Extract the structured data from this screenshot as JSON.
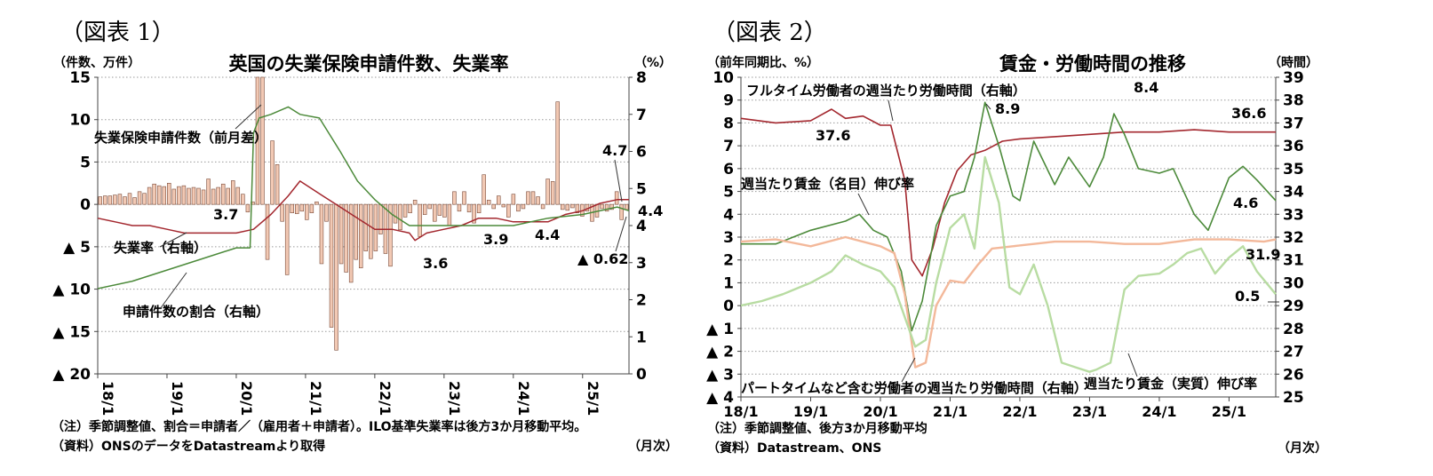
{
  "chart_data": [
    {
      "type": "bar",
      "figure_label": "（図表 1）",
      "title": "英国の失業保険申請件数、失業率",
      "left_unit": "（件数、万件）",
      "right_unit": "（%）",
      "x_ticks": [
        "18/1",
        "19/1",
        "20/1",
        "21/1",
        "22/1",
        "23/1",
        "24/1",
        "25/1"
      ],
      "x_range": [
        2018.0,
        2025.67
      ],
      "y_left": {
        "range": [
          -20,
          15
        ],
        "ticks": [
          15,
          10,
          5,
          0,
          -5,
          -10,
          -15,
          -20
        ],
        "tick_labels": [
          "15",
          "10",
          "5",
          "0",
          "▲ 5",
          "▲ 10",
          "▲ 15",
          "▲ 20"
        ]
      },
      "y_right": {
        "range": [
          0,
          8
        ],
        "ticks": [
          8,
          7,
          6,
          5,
          4,
          3,
          2,
          1,
          0
        ],
        "tick_labels": [
          "8",
          "7",
          "6",
          "5",
          "4",
          "3",
          "2",
          "1",
          "0"
        ]
      },
      "bars": {
        "name": "失業保険申請件数（前月差）",
        "color": "#f2c9b4",
        "values": [
          0.9,
          1.0,
          1.0,
          1.1,
          1.2,
          0.9,
          1.3,
          0.8,
          1.5,
          1.3,
          2.0,
          2.4,
          2.2,
          2.1,
          2.5,
          1.8,
          2.1,
          2.2,
          1.9,
          2.0,
          1.9,
          1.7,
          3.0,
          1.8,
          2.0,
          2.4,
          1.9,
          2.8,
          2.0,
          1.2,
          -0.9,
          0.3,
          15.0,
          15.0,
          -6.5,
          7.5,
          4.7,
          -2.0,
          -8.3,
          -1.0,
          -1.1,
          -0.8,
          -1.8,
          -1.0,
          0.3,
          -7.0,
          -2.0,
          -14.5,
          -17.2,
          -7.0,
          -8.0,
          -9.2,
          -6.5,
          -7.5,
          -5.5,
          -6.4,
          -5.5,
          -3.5,
          -5.8,
          -7.3,
          -2.2,
          -3.0,
          -1.5,
          -1.0,
          0.5,
          -3.8,
          -1.2,
          -0.5,
          -2.0,
          -1.3,
          -1.5,
          -2.5,
          1.5,
          -0.8,
          1.5,
          -0.9,
          -2.2,
          -1.0,
          3.5,
          0.5,
          -0.5,
          1.0,
          -0.3,
          -1.5,
          1.2,
          -0.8,
          -0.5,
          1.5,
          1.5,
          0.9,
          -0.5,
          3.0,
          2.7,
          12.1,
          -0.6,
          -0.7,
          -0.4,
          -1.0,
          -1.4,
          -0.8,
          -2.0,
          -1.5,
          -0.5,
          -0.8,
          -0.6,
          1.5,
          -1.8,
          -0.62
        ]
      },
      "series": [
        {
          "name": "失業率（右軸）",
          "color": "#a3272e",
          "x": [
            2018.0,
            2018.25,
            2018.5,
            2018.75,
            2019.0,
            2019.25,
            2019.5,
            2019.75,
            2020.0,
            2020.25,
            2020.5,
            2020.75,
            2020.92,
            2021.25,
            2021.5,
            2021.75,
            2022.0,
            2022.25,
            2022.5,
            2022.58,
            2022.75,
            2023.0,
            2023.25,
            2023.5,
            2023.75,
            2024.0,
            2024.25,
            2024.5,
            2024.75,
            2025.0,
            2025.25,
            2025.5,
            2025.67
          ],
          "values": [
            4.2,
            4.1,
            4.0,
            4.0,
            3.9,
            3.8,
            3.8,
            3.8,
            3.8,
            3.9,
            4.3,
            4.8,
            5.2,
            4.8,
            4.5,
            4.2,
            3.9,
            3.9,
            3.8,
            3.6,
            3.8,
            3.9,
            4.0,
            4.2,
            4.2,
            4.1,
            4.1,
            4.1,
            4.3,
            4.4,
            4.6,
            4.7,
            4.7
          ]
        },
        {
          "name": "申請件数の割合（右軸）",
          "color": "#4c8a3a",
          "x": [
            2018.0,
            2018.5,
            2019.0,
            2019.5,
            2020.0,
            2020.2,
            2020.25,
            2020.33,
            2020.5,
            2020.75,
            2020.92,
            2021.2,
            2021.5,
            2021.75,
            2022.0,
            2022.25,
            2022.5,
            2023.0,
            2023.5,
            2024.0,
            2024.5,
            2025.0,
            2025.5,
            2025.67
          ],
          "values": [
            2.3,
            2.5,
            2.8,
            3.1,
            3.4,
            3.4,
            6.5,
            6.9,
            7.0,
            7.2,
            7.0,
            6.9,
            6.0,
            5.2,
            4.7,
            4.3,
            4.0,
            4.0,
            4.0,
            4.0,
            4.2,
            4.3,
            4.5,
            4.4
          ]
        }
      ],
      "annotations": [
        {
          "text": "失業保険申請件数（前月差）"
        },
        {
          "text": "失業率（右軸）"
        },
        {
          "text": "申請件数の割合（右軸）"
        },
        {
          "text": "3.7"
        },
        {
          "text": "3.6"
        },
        {
          "text": "3.9"
        },
        {
          "text": "4.4"
        },
        {
          "text": "4.7"
        },
        {
          "text": "4.4"
        },
        {
          "text": "▲ 0.62"
        }
      ],
      "notes": [
        "（注）季節調整値、割合＝申請者／（雇用者＋申請者）。ILO基準失業率は後方3か月移動平均。",
        "（資料）ONSのデータをDatastreamより取得"
      ],
      "frequency_label": "（月次）"
    },
    {
      "type": "line",
      "figure_label": "（図表 2）",
      "title": "賃金・労働時間の推移",
      "left_unit": "（前年同期比、%）",
      "right_unit": "（時間）",
      "x_ticks": [
        "18/1",
        "19/1",
        "20/1",
        "21/1",
        "22/1",
        "23/1",
        "24/1",
        "25/1"
      ],
      "x_range": [
        2018.0,
        2025.67
      ],
      "y_left": {
        "range": [
          -4,
          10
        ],
        "ticks": [
          10,
          9,
          8,
          7,
          6,
          5,
          4,
          3,
          2,
          1,
          0,
          -1,
          -2,
          -3,
          -4
        ],
        "tick_labels": [
          "10",
          "9",
          "8",
          "7",
          "6",
          "5",
          "4",
          "3",
          "2",
          "1",
          "0",
          "▲ 1",
          "▲ 2",
          "▲ 3",
          "▲ 4"
        ]
      },
      "y_right": {
        "range": [
          25,
          39
        ],
        "ticks": [
          39,
          38,
          37,
          36,
          35,
          34,
          33,
          32,
          31,
          30,
          29,
          28,
          27,
          26,
          25
        ],
        "tick_labels": [
          "39",
          "38",
          "37",
          "36",
          "35",
          "34",
          "33",
          "32",
          "31",
          "30",
          "29",
          "28",
          "27",
          "26",
          "25"
        ]
      },
      "series": [
        {
          "name": "フルタイム労働者の週当たり労働時間（右軸）",
          "axis": "right",
          "color": "#a3272e",
          "x": [
            2018.0,
            2018.5,
            2019.0,
            2019.3,
            2019.5,
            2019.75,
            2020.0,
            2020.15,
            2020.35,
            2020.45,
            2020.6,
            2020.75,
            2020.92,
            2021.1,
            2021.3,
            2021.5,
            2021.75,
            2022.0,
            2022.5,
            2023.0,
            2023.5,
            2024.0,
            2024.5,
            2025.0,
            2025.5,
            2025.67
          ],
          "values": [
            37.2,
            37.0,
            37.1,
            37.6,
            37.2,
            37.3,
            36.9,
            36.9,
            34.5,
            31.0,
            30.3,
            31.5,
            33.5,
            34.9,
            35.6,
            35.8,
            36.2,
            36.3,
            36.4,
            36.5,
            36.6,
            36.6,
            36.7,
            36.6,
            36.6,
            36.6
          ]
        },
        {
          "name": "週当たり賃金（名目）伸び率",
          "axis": "left",
          "color": "#4c8a3a",
          "x": [
            2018.0,
            2018.5,
            2019.0,
            2019.5,
            2019.7,
            2019.9,
            2020.1,
            2020.3,
            2020.45,
            2020.6,
            2020.8,
            2021.0,
            2021.2,
            2021.35,
            2021.5,
            2021.7,
            2021.9,
            2022.0,
            2022.2,
            2022.5,
            2022.7,
            2023.0,
            2023.2,
            2023.35,
            2023.5,
            2023.7,
            2024.0,
            2024.2,
            2024.5,
            2024.7,
            2025.0,
            2025.2,
            2025.4,
            2025.67
          ],
          "values": [
            2.7,
            2.7,
            3.3,
            3.7,
            4.0,
            3.3,
            3.0,
            1.5,
            -1.1,
            0.2,
            3.5,
            4.8,
            5.0,
            6.5,
            8.9,
            7.0,
            4.8,
            4.6,
            7.2,
            5.3,
            6.5,
            5.2,
            6.5,
            8.4,
            7.5,
            6.0,
            5.8,
            6.0,
            4.0,
            3.3,
            5.6,
            6.1,
            5.5,
            4.6
          ]
        },
        {
          "name": "パートタイムなど含む労働者の週当たり労働時間（右軸）",
          "axis": "right",
          "color": "#f3b89a",
          "x": [
            2018.0,
            2018.5,
            2019.0,
            2019.5,
            2020.0,
            2020.2,
            2020.35,
            2020.5,
            2020.65,
            2020.8,
            2021.0,
            2021.2,
            2021.4,
            2021.6,
            2021.9,
            2022.2,
            2022.5,
            2023.0,
            2023.5,
            2024.0,
            2024.5,
            2025.0,
            2025.5,
            2025.67
          ],
          "values": [
            31.8,
            31.9,
            31.6,
            32.0,
            31.6,
            31.3,
            29.5,
            26.3,
            26.5,
            29.0,
            30.1,
            30.0,
            30.8,
            31.5,
            31.6,
            31.7,
            31.8,
            31.8,
            31.7,
            31.7,
            31.9,
            31.9,
            31.8,
            31.9
          ]
        },
        {
          "name": "週当たり賃金（実質）伸び率",
          "axis": "left",
          "color": "#b8dca2",
          "x": [
            2018.0,
            2018.3,
            2018.6,
            2019.0,
            2019.3,
            2019.5,
            2019.75,
            2020.0,
            2020.2,
            2020.35,
            2020.5,
            2020.65,
            2020.8,
            2021.0,
            2021.2,
            2021.35,
            2021.5,
            2021.7,
            2021.85,
            2022.0,
            2022.2,
            2022.4,
            2022.6,
            2022.8,
            2023.0,
            2023.1,
            2023.3,
            2023.5,
            2023.7,
            2024.0,
            2024.2,
            2024.4,
            2024.6,
            2024.8,
            2025.0,
            2025.2,
            2025.4,
            2025.67
          ],
          "values": [
            0.0,
            0.2,
            0.5,
            1.0,
            1.5,
            2.2,
            1.8,
            1.5,
            0.8,
            -0.5,
            -1.8,
            -1.5,
            1.0,
            3.4,
            4.0,
            2.5,
            6.5,
            4.5,
            0.8,
            0.5,
            1.8,
            0.0,
            -2.5,
            -2.7,
            -2.9,
            -2.8,
            -2.5,
            0.7,
            1.3,
            1.4,
            1.8,
            2.3,
            2.5,
            1.4,
            2.1,
            2.6,
            1.5,
            0.5
          ]
        }
      ],
      "annotations": [
        {
          "text": "フルタイム労働者の週当たり労働時間（右軸）"
        },
        {
          "text": "週当たり賃金（名目）伸び率"
        },
        {
          "text": "パートタイムなど含む労働者の週当たり労働時間（右軸）"
        },
        {
          "text": "週当たり賃金（実質）伸び率"
        },
        {
          "text": "37.6"
        },
        {
          "text": "8.9"
        },
        {
          "text": "8.4"
        },
        {
          "text": "36.6"
        },
        {
          "text": "4.6"
        },
        {
          "text": "31.9"
        },
        {
          "text": "0.5"
        }
      ],
      "notes": [
        "（注）季節調整値、後方3か月移動平均",
        "（資料）Datastream、ONS"
      ],
      "frequency_label": "（月次）"
    }
  ]
}
